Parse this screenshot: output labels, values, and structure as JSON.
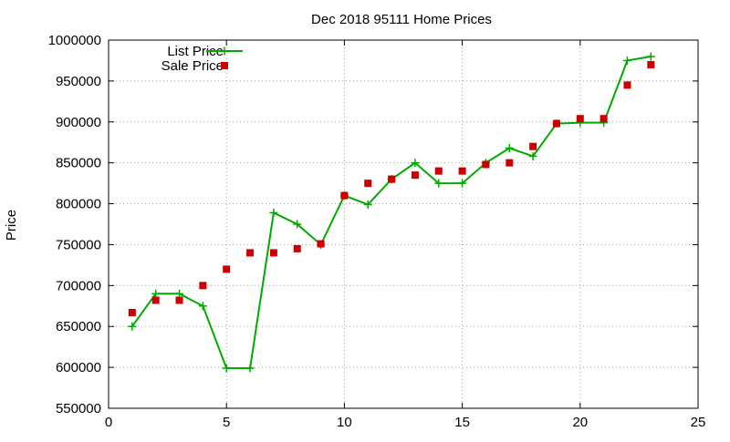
{
  "chart_data": {
    "type": "line",
    "title": "Dec 2018 95111 Home Prices",
    "xlabel": "",
    "ylabel": "Price",
    "xlim": [
      0,
      25
    ],
    "ylim": [
      550000,
      1000000
    ],
    "x_ticks": [
      "0",
      "5",
      "10",
      "15",
      "20",
      "25"
    ],
    "y_ticks": [
      "550000",
      "600000",
      "650000",
      "700000",
      "750000",
      "800000",
      "850000",
      "900000",
      "950000",
      "1000000"
    ],
    "grid": true,
    "legend_position": "top-left",
    "series": [
      {
        "name": "List Price",
        "style": "line-with-plus-markers",
        "color": "#00aa00",
        "x": [
          1,
          2,
          3,
          4,
          5,
          6,
          7,
          8,
          9,
          10,
          11,
          12,
          13,
          14,
          15,
          16,
          17,
          18,
          19,
          20,
          21,
          22,
          23
        ],
        "values": [
          650000,
          690000,
          690000,
          675000,
          599000,
          599000,
          789000,
          775000,
          750000,
          810000,
          799000,
          830000,
          850000,
          825000,
          825000,
          850000,
          868000,
          858000,
          898000,
          899000,
          899000,
          975000,
          980000
        ]
      },
      {
        "name": "Sale Price",
        "style": "square-markers",
        "color": "#cc0000",
        "x": [
          1,
          2,
          3,
          4,
          5,
          6,
          7,
          8,
          9,
          10,
          11,
          12,
          13,
          14,
          15,
          16,
          17,
          18,
          19,
          20,
          21,
          22,
          23
        ],
        "values": [
          667000,
          682000,
          682000,
          700000,
          720000,
          740000,
          740000,
          745000,
          751000,
          810000,
          825000,
          830000,
          835000,
          840000,
          840000,
          848000,
          850000,
          870000,
          898000,
          904000,
          904000,
          945000,
          970000
        ]
      }
    ]
  }
}
